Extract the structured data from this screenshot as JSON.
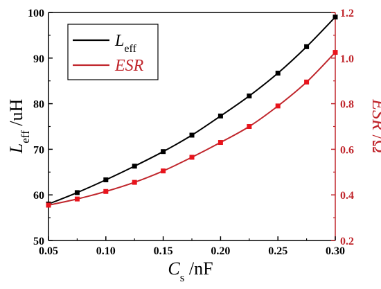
{
  "chart_data": {
    "type": "line",
    "x": [
      0.05,
      0.075,
      0.1,
      0.125,
      0.15,
      0.175,
      0.2,
      0.225,
      0.25,
      0.275,
      0.3
    ],
    "series": [
      {
        "name": "L_eff",
        "axis": "left",
        "color": "#000000",
        "values": [
          58.0,
          60.5,
          63.3,
          66.3,
          69.5,
          73.1,
          77.3,
          81.7,
          86.7,
          92.5,
          99.0
        ]
      },
      {
        "name": "ESR",
        "axis": "right",
        "color": "#c0262c",
        "values": [
          0.355,
          0.382,
          0.415,
          0.455,
          0.505,
          0.565,
          0.63,
          0.7,
          0.79,
          0.895,
          1.025
        ]
      }
    ],
    "xlabel": {
      "main": "C",
      "sub": "s",
      "unit": " /nF"
    },
    "ylabel_left": {
      "main": "L",
      "sub": "eff",
      "unit": " /uH"
    },
    "ylabel_right": {
      "main": "ESR",
      "unit": " /Ω"
    },
    "xlim": [
      0.05,
      0.3
    ],
    "ylim_left": [
      50,
      100
    ],
    "ylim_right": [
      0.2,
      1.2
    ],
    "x_ticks": [
      "0.05",
      "0.10",
      "0.15",
      "0.20",
      "0.25",
      "0.30"
    ],
    "y_left_ticks": [
      "50",
      "60",
      "70",
      "80",
      "90",
      "100"
    ],
    "y_right_ticks": [
      "0.2",
      "0.4",
      "0.6",
      "0.8",
      "1.0",
      "1.2"
    ],
    "legend": {
      "placement": "top-left",
      "entries": [
        {
          "main": "L",
          "sub": "eff",
          "italic": false
        },
        {
          "main": "ESR",
          "sub": "",
          "italic": true
        }
      ]
    },
    "grid": false
  }
}
